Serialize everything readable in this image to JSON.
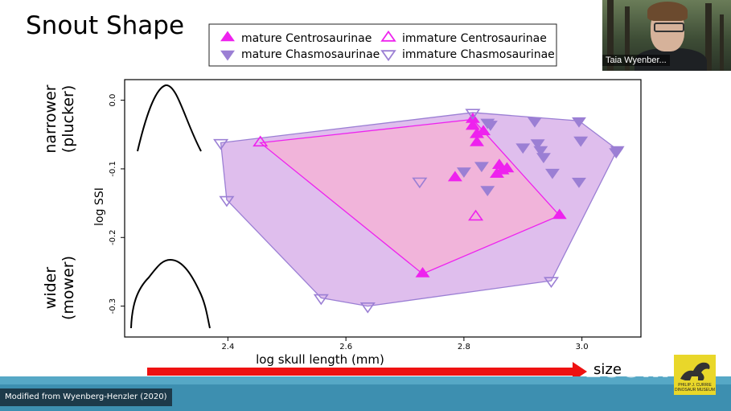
{
  "slide": {
    "title": "Snout Shape",
    "narrow_label_1": "narrower",
    "narrow_label_2": "(plucker)",
    "wide_label_1": "wider",
    "wide_label_2": "(mower)",
    "size_label": "size",
    "credit": "Modified from Wyenberg-Henzler (2020)"
  },
  "video": {
    "participant_name": "Taia Wyenber..."
  },
  "watermark": {
    "zoom_text": "zoom",
    "museum_text": "PHILIP J. CURRIE DINOSAUR MUSEUM"
  },
  "colors": {
    "magenta": "#ee22ee",
    "purple": "#9b7fd4",
    "hull_chasmo": "#d9b3ea",
    "hull_centro": "#f5b3d6",
    "arrow": "#ee1111",
    "footer": "#3d8fb0"
  },
  "chart_data": {
    "type": "scatter",
    "xlabel": "log skull length (mm)",
    "ylabel": "log SSI",
    "xlim": [
      2.225,
      3.1
    ],
    "ylim": [
      -0.345,
      0.03
    ],
    "xticks": [
      2.4,
      2.6,
      2.8,
      3.0
    ],
    "xtick_labels": [
      "2.4",
      "2.6",
      "2.8",
      "3.0"
    ],
    "yticks": [
      0.0,
      -0.1,
      -0.2,
      -0.3
    ],
    "ytick_labels": [
      "0.0",
      "-0.1",
      "-0.2",
      "-0.3"
    ],
    "legend": {
      "position": "top",
      "entries": [
        "mature Centrosaurinae",
        "immature Centrosaurinae",
        "mature Chasmosaurinae",
        "immature Chasmosaurinae"
      ]
    },
    "series": [
      {
        "name": "mature Centrosaurinae",
        "marker": "triangle-up-filled",
        "color": "#ee22ee",
        "points": [
          [
            2.815,
            -0.028
          ],
          [
            2.815,
            -0.038
          ],
          [
            2.822,
            -0.05
          ],
          [
            2.833,
            -0.046
          ],
          [
            2.822,
            -0.062
          ],
          [
            2.86,
            -0.095
          ],
          [
            2.873,
            -0.1
          ],
          [
            2.856,
            -0.108
          ],
          [
            2.865,
            -0.103
          ],
          [
            2.785,
            -0.113
          ],
          [
            2.962,
            -0.168
          ],
          [
            2.73,
            -0.253
          ]
        ]
      },
      {
        "name": "immature Centrosaurinae",
        "marker": "triangle-up-open",
        "color": "#ee22ee",
        "points": [
          [
            2.455,
            -0.062
          ],
          [
            2.82,
            -0.17
          ]
        ]
      },
      {
        "name": "mature Chasmosaurinae",
        "marker": "triangle-down-filled",
        "color": "#9b7fd4",
        "points": [
          [
            2.84,
            -0.032
          ],
          [
            2.845,
            -0.035
          ],
          [
            2.92,
            -0.03
          ],
          [
            2.995,
            -0.03
          ],
          [
            2.925,
            -0.062
          ],
          [
            2.9,
            -0.068
          ],
          [
            2.93,
            -0.072
          ],
          [
            2.998,
            -0.058
          ],
          [
            3.06,
            -0.072
          ],
          [
            3.058,
            -0.075
          ],
          [
            2.935,
            -0.082
          ],
          [
            2.83,
            -0.095
          ],
          [
            2.8,
            -0.103
          ],
          [
            2.95,
            -0.105
          ],
          [
            2.995,
            -0.118
          ],
          [
            2.84,
            -0.13
          ]
        ]
      },
      {
        "name": "immature Chasmosaurinae",
        "marker": "triangle-down-open",
        "color": "#9b7fd4",
        "points": [
          [
            2.815,
            -0.018
          ],
          [
            2.388,
            -0.062
          ],
          [
            2.725,
            -0.118
          ],
          [
            2.398,
            -0.145
          ],
          [
            2.558,
            -0.288
          ],
          [
            2.637,
            -0.3
          ],
          [
            2.948,
            -0.263
          ]
        ]
      }
    ],
    "hulls": [
      {
        "name": "Chasmosaurinae",
        "fill": "#d9b3ea",
        "stroke": "#9b7fd4",
        "points": [
          [
            2.388,
            -0.062
          ],
          [
            2.815,
            -0.018
          ],
          [
            2.995,
            -0.03
          ],
          [
            3.06,
            -0.072
          ],
          [
            2.948,
            -0.263
          ],
          [
            2.637,
            -0.3
          ],
          [
            2.558,
            -0.288
          ],
          [
            2.398,
            -0.145
          ]
        ]
      },
      {
        "name": "Centrosaurinae",
        "fill": "#f5b3d6",
        "stroke": "#ee22ee",
        "points": [
          [
            2.455,
            -0.062
          ],
          [
            2.815,
            -0.028
          ],
          [
            2.962,
            -0.168
          ],
          [
            2.73,
            -0.253
          ]
        ]
      }
    ]
  }
}
